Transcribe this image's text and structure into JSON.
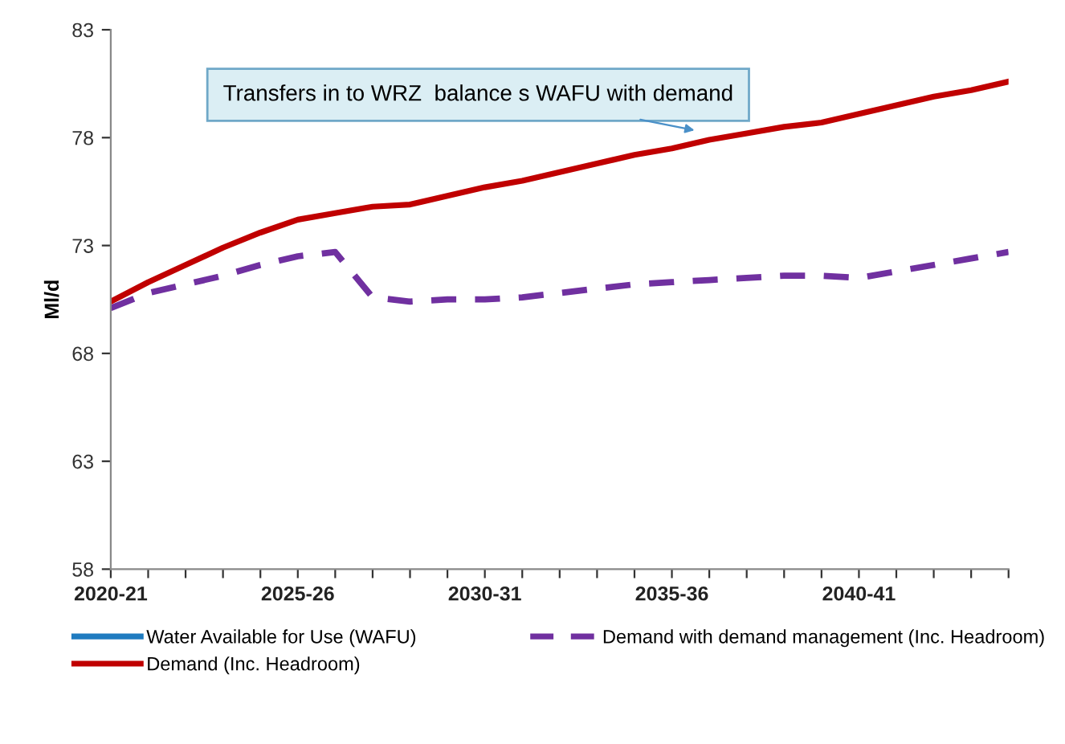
{
  "chart_data": {
    "type": "line",
    "ylabel": "Ml/d",
    "categories": [
      "2020-21",
      null,
      null,
      null,
      null,
      "2025-26",
      null,
      null,
      null,
      null,
      "2030-31",
      null,
      null,
      null,
      null,
      "2035-36",
      null,
      null,
      null,
      null,
      "2040-41",
      null,
      null,
      null,
      null
    ],
    "series": [
      {
        "name": "Water Available for Use (WAFU)",
        "color": "#1f7bc0",
        "line_style": "solid",
        "values": [
          null,
          null,
          null,
          null,
          null,
          null,
          null,
          null,
          null,
          null,
          null,
          null,
          null,
          null,
          null,
          null,
          null,
          null,
          null,
          null,
          null,
          null,
          null,
          null,
          null
        ]
      },
      {
        "name": "Demand with demand management (Inc. Headroom)",
        "color": "#7030a0",
        "line_style": "dashed",
        "values": [
          70.1,
          70.8,
          71.2,
          71.6,
          72.1,
          72.5,
          72.7,
          70.6,
          70.4,
          70.5,
          70.5,
          70.6,
          70.8,
          71.0,
          71.2,
          71.3,
          71.4,
          71.5,
          71.6,
          71.6,
          71.5,
          71.8,
          72.1,
          72.4,
          72.7
        ]
      },
      {
        "name": "Demand (Inc. Headroom)",
        "color": "#c00000",
        "line_style": "solid",
        "values": [
          70.4,
          71.3,
          72.1,
          72.9,
          73.6,
          74.2,
          74.5,
          74.8,
          74.9,
          75.3,
          75.7,
          76.0,
          76.4,
          76.8,
          77.2,
          77.5,
          77.9,
          78.2,
          78.5,
          78.7,
          79.1,
          79.5,
          79.9,
          80.2,
          80.6
        ]
      }
    ],
    "ylim": [
      58,
      83
    ],
    "yticks": [
      58,
      63,
      68,
      73,
      78,
      83
    ],
    "grid": false,
    "legend": "bottom",
    "marker": "none",
    "annotations": [
      "Transfers in to WRZ  balance s WAFU with demand"
    ]
  }
}
